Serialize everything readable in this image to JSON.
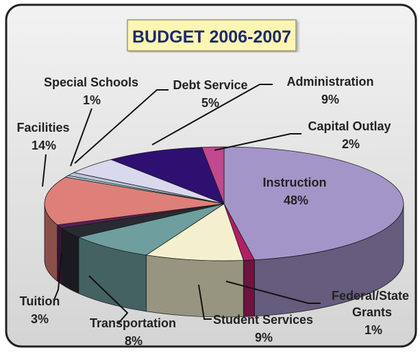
{
  "chart_data": {
    "type": "pie",
    "title": "BUDGET 2006-2007",
    "slices": [
      {
        "label": "Instruction",
        "value": 48,
        "display": "48%",
        "color": "#a495c9"
      },
      {
        "label": "Federal/State Grants",
        "value": 1,
        "display": "1%",
        "color": "#b01f66"
      },
      {
        "label": "Student Services",
        "value": 9,
        "display": "9%",
        "color": "#f4f0cf"
      },
      {
        "label": "Transportation",
        "value": 8,
        "display": "8%",
        "color": "#6e9e9e"
      },
      {
        "label": "Tuition",
        "value": 3,
        "display": "3%",
        "color": "#2a2a32"
      },
      {
        "label": "Facilities",
        "value": 14,
        "display": "14%",
        "color": "#de7f79"
      },
      {
        "label": "Special Schools",
        "value": 1,
        "display": "1%",
        "color": "#b7c5d9"
      },
      {
        "label": "Debt Service",
        "value": 5,
        "display": "5%",
        "color": "#d9d8ec"
      },
      {
        "label": "Administration",
        "value": 9,
        "display": "9%",
        "color": "#2e1070"
      },
      {
        "label": "Capital Outlay",
        "value": 2,
        "display": "2%",
        "color": "#c2488f"
      }
    ],
    "extra_slices": [
      {
        "value": 1,
        "color": "#5b1f57"
      },
      {
        "value": 0.5,
        "color": "#b3e0eb"
      }
    ]
  }
}
